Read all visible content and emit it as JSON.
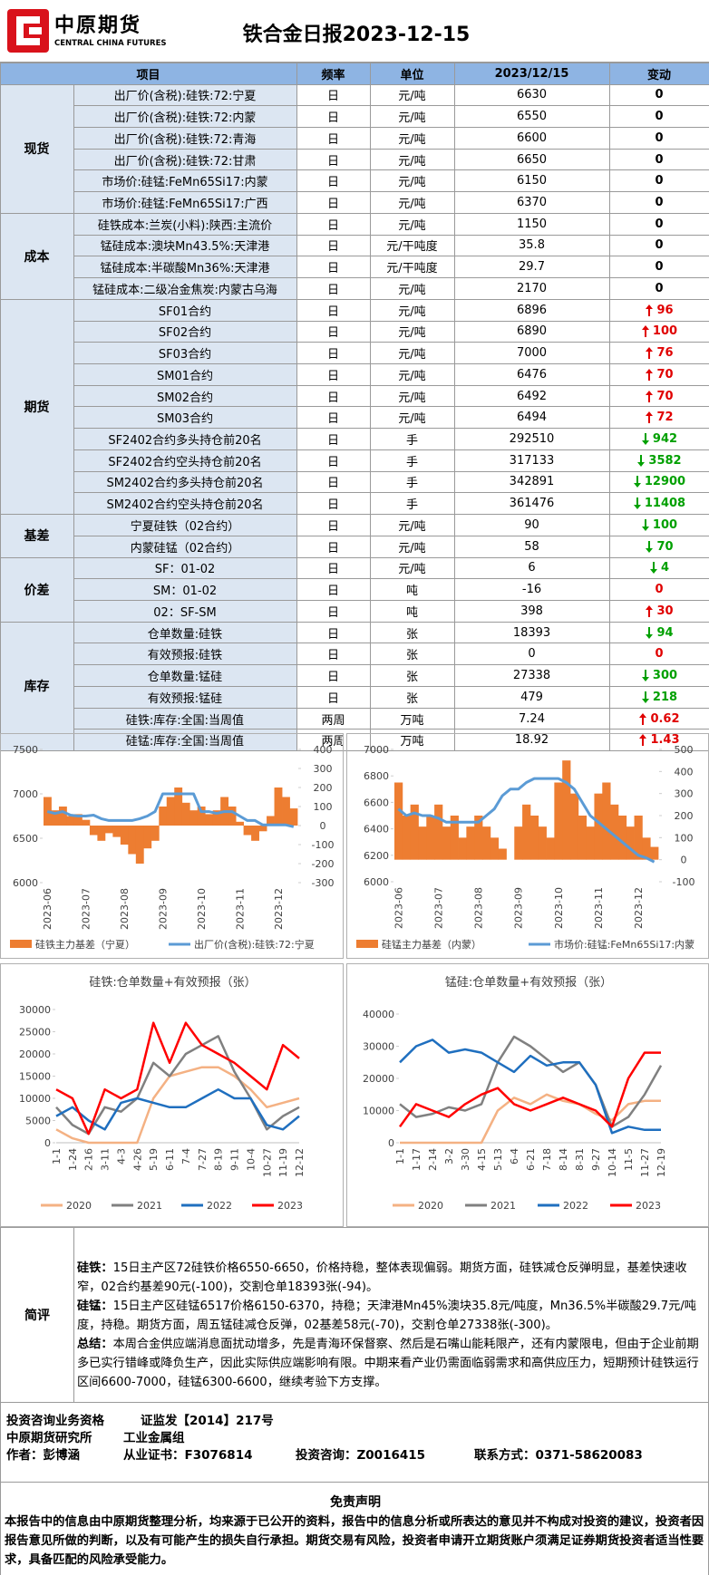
{
  "header": {
    "logo_cn": "中原期货",
    "logo_en": "CENTRAL CHINA FUTURES",
    "title": "铁合金日报2023-12-15"
  },
  "table": {
    "columns": [
      "项目",
      "频率",
      "单位",
      "2023/12/15",
      "变动"
    ],
    "groups": [
      {
        "name": "现货",
        "rows": [
          {
            "item": "出厂价(含税):硅铁:72:宁夏",
            "freq": "日",
            "unit": "元/吨",
            "value": 6630,
            "change": 0
          },
          {
            "item": "出厂价(含税):硅铁:72:内蒙",
            "freq": "日",
            "unit": "元/吨",
            "value": 6550,
            "change": 0
          },
          {
            "item": "出厂价(含税):硅铁:72:青海",
            "freq": "日",
            "unit": "元/吨",
            "value": 6600,
            "change": 0
          },
          {
            "item": "出厂价(含税):硅铁:72:甘肃",
            "freq": "日",
            "unit": "元/吨",
            "value": 6650,
            "change": 0
          },
          {
            "item": "市场价:硅锰:FeMn65Si17:内蒙",
            "freq": "日",
            "unit": "元/吨",
            "value": 6150,
            "change": 0
          },
          {
            "item": "市场价:硅锰:FeMn65Si17:广西",
            "freq": "日",
            "unit": "元/吨",
            "value": 6370,
            "change": 0
          }
        ]
      },
      {
        "name": "成本",
        "rows": [
          {
            "item": "硅铁成本:兰炭(小料):陕西:主流价",
            "freq": "日",
            "unit": "元/吨",
            "value": 1150,
            "change": 0
          },
          {
            "item": "锰硅成本:澳块Mn43.5%:天津港",
            "freq": "日",
            "unit": "元/干吨度",
            "value": 35.8,
            "change": 0
          },
          {
            "item": "锰硅成本:半碳酸Mn36%:天津港",
            "freq": "日",
            "unit": "元/干吨度",
            "value": 29.7,
            "change": 0
          },
          {
            "item": "锰硅成本:二级冶金焦炭:内蒙古乌海",
            "freq": "日",
            "unit": "元/吨",
            "value": 2170,
            "change": 0
          }
        ]
      },
      {
        "name": "期货",
        "rows": [
          {
            "item": "SF01合约",
            "freq": "日",
            "unit": "元/吨",
            "value": 6896,
            "change": 96,
            "trend": "up"
          },
          {
            "item": "SF02合约",
            "freq": "日",
            "unit": "元/吨",
            "value": 6890,
            "change": 100,
            "trend": "up"
          },
          {
            "item": "SF03合约",
            "freq": "日",
            "unit": "元/吨",
            "value": 7000,
            "change": 76,
            "trend": "up"
          },
          {
            "item": "SM01合约",
            "freq": "日",
            "unit": "元/吨",
            "value": 6476,
            "change": 70,
            "trend": "up"
          },
          {
            "item": "SM02合约",
            "freq": "日",
            "unit": "元/吨",
            "value": 6492,
            "change": 70,
            "trend": "up"
          },
          {
            "item": "SM03合约",
            "freq": "日",
            "unit": "元/吨",
            "value": 6494,
            "change": 72,
            "trend": "up"
          },
          {
            "item": "SF2402合约多头持仓前20名",
            "freq": "日",
            "unit": "手",
            "value": 292510,
            "change": 942,
            "trend": "down"
          },
          {
            "item": "SF2402合约空头持仓前20名",
            "freq": "日",
            "unit": "手",
            "value": 317133,
            "change": 3582,
            "trend": "down"
          },
          {
            "item": "SM2402合约多头持仓前20名",
            "freq": "日",
            "unit": "手",
            "value": 342891,
            "change": 12900,
            "trend": "down"
          },
          {
            "item": "SM2402合约空头持仓前20名",
            "freq": "日",
            "unit": "手",
            "value": 361476,
            "change": 11408,
            "trend": "down"
          }
        ]
      },
      {
        "name": "基差",
        "rows": [
          {
            "item": "宁夏硅铁（02合约）",
            "freq": "日",
            "unit": "元/吨",
            "value": 90,
            "change": 100,
            "trend": "down"
          },
          {
            "item": "内蒙硅锰（02合约）",
            "freq": "日",
            "unit": "元/吨",
            "value": 58,
            "change": 70,
            "trend": "down"
          }
        ]
      },
      {
        "name": "价差",
        "rows": [
          {
            "item": "SF：01-02",
            "freq": "日",
            "unit": "元/吨",
            "value": 6,
            "change": 4,
            "trend": "down"
          },
          {
            "item": "SM：01-02",
            "freq": "日",
            "unit": "吨",
            "value": -16,
            "change": 0,
            "color": "#e00000"
          },
          {
            "item": "02：SF-SM",
            "freq": "日",
            "unit": "吨",
            "value": 398,
            "change": 30,
            "trend": "up"
          }
        ]
      },
      {
        "name": "库存",
        "rows": [
          {
            "item": "仓单数量:硅铁",
            "freq": "日",
            "unit": "张",
            "value": 18393,
            "change": 94,
            "trend": "down"
          },
          {
            "item": "有效预报:硅铁",
            "freq": "日",
            "unit": "张",
            "value": 0,
            "change": 0,
            "color": "#e00000"
          },
          {
            "item": "仓单数量:锰硅",
            "freq": "日",
            "unit": "张",
            "value": 27338,
            "change": 300,
            "trend": "down"
          },
          {
            "item": "有效预报:锰硅",
            "freq": "日",
            "unit": "张",
            "value": 479,
            "change": 218,
            "trend": "down"
          },
          {
            "item": "硅铁:库存:全国:当周值",
            "freq": "两周",
            "unit": "万吨",
            "value": 7.24,
            "change": 0.62,
            "trend": "up"
          },
          {
            "item": "硅锰:库存:全国:当周值",
            "freq": "两周",
            "unit": "万吨",
            "value": 18.92,
            "change": 1.43,
            "trend": "up"
          }
        ]
      }
    ]
  },
  "chart_data": [
    {
      "type": "combo",
      "categories": [
        "2023-06",
        null,
        null,
        null,
        null,
        "2023-07",
        null,
        null,
        null,
        null,
        "2023-08",
        null,
        null,
        null,
        null,
        "2023-09",
        null,
        null,
        null,
        null,
        "2023-10",
        null,
        null,
        null,
        null,
        "2023-11",
        null,
        null,
        null,
        null,
        "2023-12",
        null,
        null
      ],
      "series": [
        {
          "name": "硅铁主力基差（宁夏）",
          "type": "area",
          "axis": "y2",
          "color": "#ed7d31",
          "values": [
            150,
            80,
            100,
            50,
            60,
            30,
            -50,
            -80,
            -40,
            -60,
            -100,
            -150,
            -200,
            -120,
            -80,
            100,
            150,
            200,
            120,
            80,
            100,
            60,
            80,
            150,
            100,
            20,
            -50,
            -80,
            -30,
            50,
            200,
            150,
            90
          ]
        },
        {
          "name": "出厂价(含税):硅铁:72:宁夏",
          "type": "line",
          "color": "#5b9bd5",
          "values": [
            6800,
            6780,
            6800,
            6760,
            6750,
            6750,
            6760,
            6720,
            6700,
            6700,
            6700,
            6700,
            6720,
            6750,
            6800,
            7000,
            7000,
            7000,
            7000,
            7000,
            6800,
            6800,
            6780,
            6800,
            6800,
            6750,
            6700,
            6700,
            6650,
            6650,
            6650,
            6650,
            6630
          ]
        }
      ],
      "ylim": [
        6000,
        7500
      ],
      "yticks": [
        6000,
        6500,
        7000,
        7500
      ],
      "y2lim": [
        -300,
        400
      ],
      "y2ticks": [
        -300,
        -200,
        -100,
        0,
        100,
        200,
        300,
        400
      ]
    },
    {
      "type": "combo",
      "categories": [
        "2023-06",
        null,
        null,
        null,
        null,
        "2023-07",
        null,
        null,
        null,
        null,
        "2023-08",
        null,
        null,
        null,
        null,
        "2023-09",
        null,
        null,
        null,
        null,
        "2023-10",
        null,
        null,
        null,
        null,
        "2023-11",
        null,
        null,
        null,
        null,
        "2023-12",
        null,
        null
      ],
      "series": [
        {
          "name": "硅锰主力基差（内蒙）",
          "type": "area",
          "axis": "y2",
          "color": "#ed7d31",
          "values": [
            350,
            200,
            250,
            150,
            200,
            250,
            150,
            200,
            100,
            150,
            200,
            150,
            100,
            50,
            0,
            150,
            250,
            200,
            150,
            100,
            350,
            450,
            300,
            200,
            150,
            300,
            350,
            250,
            200,
            150,
            200,
            100,
            58
          ]
        },
        {
          "name": "市场价:硅锰:FeMn65Si17:内蒙",
          "type": "line",
          "color": "#5b9bd5",
          "values": [
            6550,
            6500,
            6520,
            6500,
            6500,
            6480,
            6450,
            6450,
            6450,
            6450,
            6450,
            6500,
            6550,
            6650,
            6700,
            6700,
            6750,
            6780,
            6780,
            6780,
            6780,
            6750,
            6700,
            6600,
            6500,
            6450,
            6400,
            6350,
            6300,
            6250,
            6200,
            6180,
            6150
          ]
        }
      ],
      "ylim": [
        6000,
        7000
      ],
      "yticks": [
        6000,
        6200,
        6400,
        6600,
        6800,
        7000
      ],
      "y2lim": [
        -100,
        500
      ],
      "y2ticks": [
        -100,
        0,
        100,
        200,
        300,
        400,
        500
      ]
    },
    {
      "type": "line",
      "title": "硅铁:仓单数量+有效预报（张）",
      "categories": [
        "1-1",
        "1-24",
        "2-16",
        "3-11",
        "4-3",
        "4-26",
        "5-19",
        "6-11",
        "7-4",
        "7-27",
        "8-19",
        "9-11",
        "10-4",
        "10-27",
        "11-19",
        "12-12"
      ],
      "series": [
        {
          "name": "2020",
          "color": "#f4b183",
          "values": [
            3000,
            1000,
            0,
            0,
            0,
            0,
            10000,
            15000,
            16000,
            17000,
            17000,
            15000,
            12000,
            8000,
            9000,
            10000
          ]
        },
        {
          "name": "2021",
          "color": "#808080",
          "values": [
            8000,
            4000,
            2000,
            8000,
            7000,
            10000,
            18000,
            15000,
            20000,
            22000,
            24000,
            16000,
            10000,
            3000,
            6000,
            8000
          ]
        },
        {
          "name": "2022",
          "color": "#1f6fbf",
          "values": [
            6000,
            8000,
            5000,
            3000,
            9000,
            10000,
            9000,
            8000,
            8000,
            10000,
            12000,
            10000,
            10000,
            4000,
            3000,
            6000
          ]
        },
        {
          "name": "2023",
          "color": "#ff0000",
          "values": [
            12000,
            10000,
            2000,
            12000,
            10000,
            12000,
            27000,
            18000,
            27000,
            22000,
            20000,
            18000,
            15000,
            12000,
            22000,
            19000
          ]
        }
      ],
      "ylim": [
        0,
        30000
      ],
      "yticks": [
        0,
        5000,
        10000,
        15000,
        20000,
        25000,
        30000
      ]
    },
    {
      "type": "line",
      "title": "锰硅:仓单数量+有效预报（张）",
      "categories": [
        "1-1",
        "1-17",
        "2-14",
        "3-2",
        "3-30",
        "4-15",
        "5-13",
        "6-4",
        "6-21",
        "7-18",
        "8-14",
        "8-31",
        "9-27",
        "10-14",
        "11-5",
        "11-27",
        "12-19"
      ],
      "series": [
        {
          "name": "2020",
          "color": "#f4b183",
          "values": [
            0,
            0,
            0,
            0,
            0,
            0,
            10000,
            14000,
            12000,
            15000,
            13000,
            12000,
            9000,
            7000,
            12000,
            13000,
            13000
          ]
        },
        {
          "name": "2021",
          "color": "#808080",
          "values": [
            12000,
            8000,
            9000,
            11000,
            10000,
            12000,
            25000,
            33000,
            30000,
            26000,
            22000,
            25000,
            18000,
            5000,
            8000,
            15000,
            24000
          ]
        },
        {
          "name": "2022",
          "color": "#1f6fbf",
          "values": [
            25000,
            30000,
            32000,
            28000,
            29000,
            28000,
            25000,
            22000,
            27000,
            24000,
            25000,
            25000,
            18000,
            3000,
            5000,
            4000,
            4000
          ]
        },
        {
          "name": "2023",
          "color": "#ff0000",
          "values": [
            5000,
            12000,
            10000,
            8000,
            12000,
            15000,
            17000,
            12000,
            10000,
            12000,
            14000,
            12000,
            10000,
            5000,
            20000,
            28000,
            28000
          ]
        }
      ],
      "ylim": [
        0,
        40000
      ],
      "yticks": [
        0,
        10000,
        20000,
        30000,
        40000
      ]
    }
  ],
  "comment": {
    "label": "简评",
    "paragraphs": [
      {
        "label": "硅铁：",
        "text": "15日主产区72硅铁价格6550-6650，价格持稳，整体表现偏弱。期货方面，硅铁减仓反弹明显，基差快速收窄，02合约基差90元(-100)，交割仓单18393张(-94)。"
      },
      {
        "label": "硅锰：",
        "text": "15日主产区硅锰6517价格6150-6370，持稳；天津港Mn45%澳块35.8元/吨度，Mn36.5%半碳酸29.7元/吨度，持稳。期货方面，周五锰硅减仓反弹，02基差58元(-70)，交割仓单27338张(-300)。"
      },
      {
        "label": "总结：",
        "text": "本周合金供应端消息面扰动增多，先是青海环保督察、然后是石嘴山能耗限产，还有内蒙限电，但由于企业前期多已实行错峰或降负生产，因此实际供应端影响有限。中期来看产业仍需面临弱需求和高供应压力，短期预计硅铁运行区间6600-7000，硅锰6300-6600，继续考验下方支撑。"
      }
    ]
  },
  "footer": {
    "lines": [
      [
        "投资咨询业务资格",
        "证监发【2014】217号"
      ],
      [
        "中原期货研究所",
        "工业金属组"
      ],
      [
        "作者：彭博涵",
        "从业证书：F3076814",
        "投资咨询：Z0016415",
        "联系方式：0371-58620083"
      ]
    ]
  },
  "disclaimer": {
    "title": "免责声明",
    "text": "本报告中的信息由中原期货整理分析，均来源于已公开的资料，报告中的信息分析或所表达的意见并不构成对投资的建议，投资者因报告意见所做的判断，以及有可能产生的损失自行承担。期货交易有风险，投资者申请开立期货账户须满足证券期货投资者适当性要求，具备匹配的风险承受能力。"
  }
}
